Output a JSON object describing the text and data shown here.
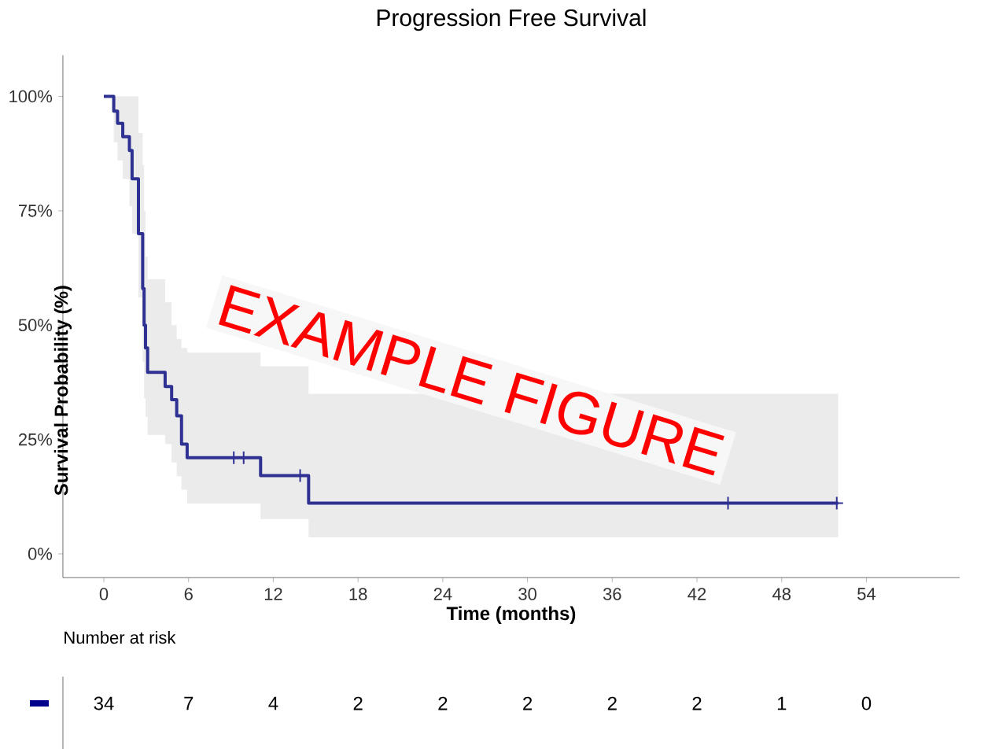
{
  "chart_data": [
    {
      "type": "step",
      "title": "Progression Free Survival",
      "xlabel": "Time (months)",
      "ylabel": "Survival Probability (%)",
      "xlim": [
        -2.9,
        60.6
      ],
      "ylim": [
        -5.2,
        109
      ],
      "xticks": [
        0,
        6,
        12,
        18,
        24,
        30,
        36,
        42,
        48,
        54
      ],
      "yticks": [
        {
          "value": 0,
          "label": "0%"
        },
        {
          "value": 25,
          "label": "25%"
        },
        {
          "value": 50,
          "label": "50%"
        },
        {
          "value": 75,
          "label": "75%"
        },
        {
          "value": 100,
          "label": "100%"
        }
      ],
      "series": [
        {
          "type": "step",
          "color": "#2e3192",
          "x": [
            0,
            0.7,
            0.97,
            1.34,
            1.81,
            2.0,
            2.45,
            2.75,
            2.85,
            2.95,
            3.1,
            4.34,
            4.8,
            5.16,
            5.5,
            5.9,
            11.1,
            14.5,
            52
          ],
          "values": [
            100,
            96.8,
            94.1,
            91.2,
            88.2,
            82,
            70,
            58,
            50,
            45,
            39.7,
            36.6,
            33.7,
            30.2,
            24,
            21,
            17.1,
            11.1,
            11.1
          ],
          "lower": [
            100,
            90,
            86,
            82,
            76,
            70,
            56,
            42,
            34,
            30,
            26,
            24,
            20,
            17,
            14,
            11,
            7.6,
            3.6,
            3.6
          ],
          "upper": [
            100,
            100,
            100,
            100,
            100,
            100,
            92,
            85,
            75,
            65,
            60,
            55,
            50,
            47,
            45,
            44,
            41,
            35,
            35
          ]
        },
        {
          "type": "scatter",
          "marker": "cross",
          "color": "#2e3192",
          "x": [
            9.2,
            9.9,
            13.9,
            44.2,
            51.9
          ],
          "values": [
            21,
            21,
            17.1,
            11.1,
            11.1
          ]
        }
      ],
      "annotations": [
        "EXAMPLE FIGURE"
      ]
    },
    {
      "type": "other",
      "title": "Number at risk",
      "color": "#00008b",
      "data_labels": true,
      "categories": [
        null,
        null,
        null,
        null,
        null,
        null,
        null,
        null,
        null,
        null
      ],
      "values": [
        34,
        7,
        4,
        2,
        2,
        2,
        2,
        2,
        1,
        0
      ]
    }
  ]
}
